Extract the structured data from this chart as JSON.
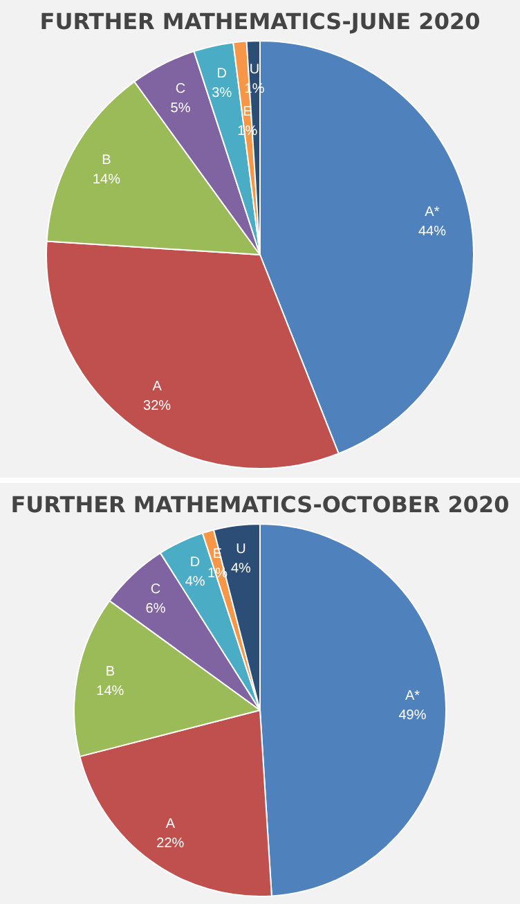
{
  "chart_data": [
    {
      "type": "pie",
      "title": "FURTHER MATHEMATICS-JUNE 2020",
      "categories": [
        "A*",
        "A",
        "B",
        "C",
        "D",
        "E",
        "U"
      ],
      "values": [
        44,
        32,
        14,
        5,
        3,
        1,
        1
      ],
      "value_labels": [
        "44%",
        "32%",
        "14%",
        "5%",
        "3%",
        "1%",
        "1%"
      ],
      "colors": [
        "#4f81bd",
        "#c0504d",
        "#9bbb59",
        "#8064a2",
        "#4bacc6",
        "#f79646",
        "#2c4d75"
      ],
      "legend": false
    },
    {
      "type": "pie",
      "title": "FURTHER MATHEMATICS-OCTOBER 2020",
      "categories": [
        "A*",
        "A",
        "B",
        "C",
        "D",
        "E",
        "U"
      ],
      "values": [
        49,
        22,
        14,
        6,
        4,
        1,
        4
      ],
      "value_labels": [
        "49%",
        "22%",
        "14%",
        "6%",
        "4%",
        "1%",
        "4%"
      ],
      "colors": [
        "#4f81bd",
        "#c0504d",
        "#9bbb59",
        "#8064a2",
        "#4bacc6",
        "#f79646",
        "#2c4d75"
      ],
      "legend": false
    }
  ]
}
